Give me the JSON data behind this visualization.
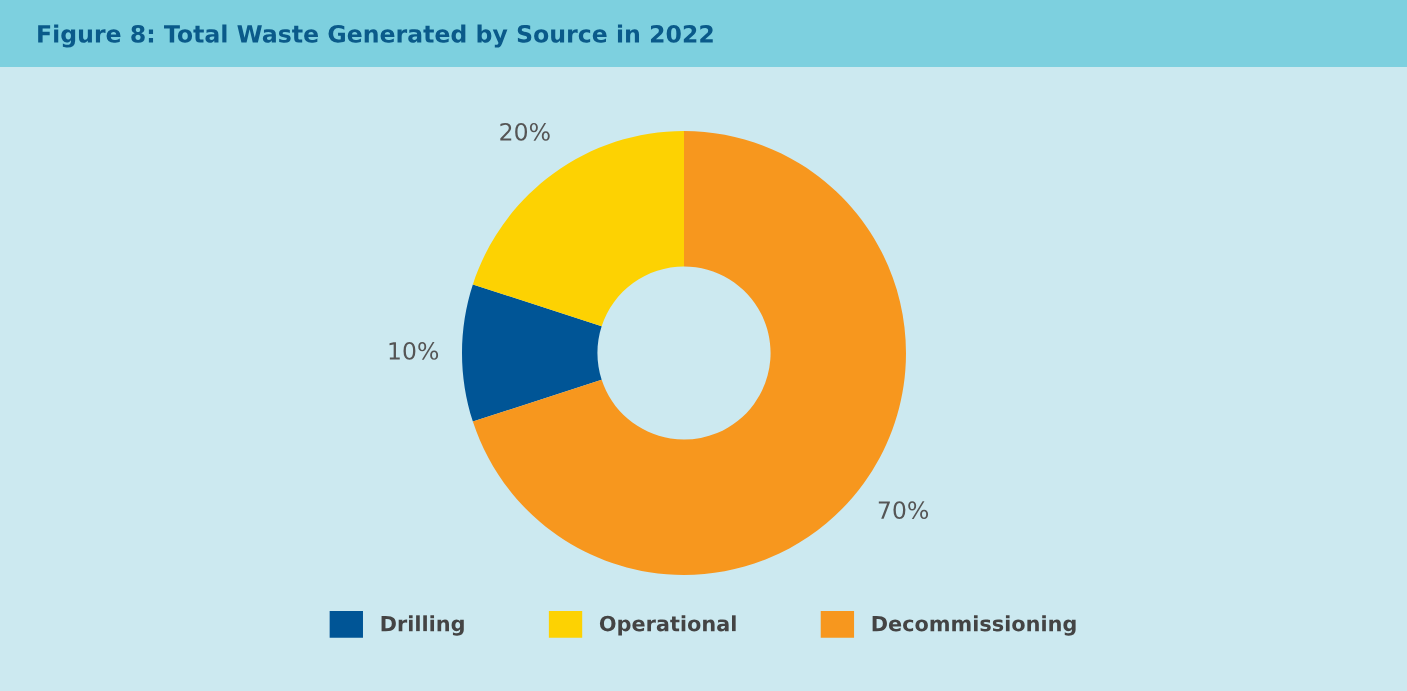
{
  "chart_data": {
    "type": "donut",
    "title": "Figure 8: Total Waste Generated by Source in 2022",
    "categories": [
      "Drilling",
      "Operational",
      "Decommissioning"
    ],
    "values": [
      10,
      20,
      70
    ],
    "colors": [
      "#005596",
      "#fdd202",
      "#f7971e"
    ],
    "value_labels": [
      "10%",
      "20%",
      "70%"
    ],
    "legend": "bottom"
  }
}
